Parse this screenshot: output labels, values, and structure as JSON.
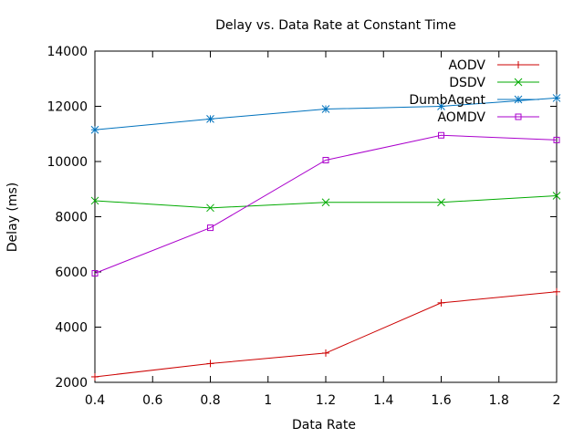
{
  "chart_data": {
    "type": "line",
    "title": "Delay vs. Data Rate at Constant Time",
    "xlabel": "Data Rate",
    "ylabel": "Delay (ms)",
    "xlim": [
      0.4,
      2
    ],
    "ylim": [
      2000,
      14000
    ],
    "xticks": [
      "0.4",
      "0.6",
      "0.8",
      "1",
      "1.2",
      "1.4",
      "1.6",
      "1.8",
      "2"
    ],
    "yticks": [
      "2000",
      "4000",
      "6000",
      "8000",
      "10000",
      "12000",
      "14000"
    ],
    "grid": false,
    "legend_position": "top-right",
    "x": [
      0.4,
      0.8,
      1.2,
      1.6,
      2.0
    ],
    "series": [
      {
        "name": "AODV",
        "color": "#cc0000",
        "marker": "plus",
        "values": [
          2200,
          2680,
          3060,
          4880,
          5280
        ]
      },
      {
        "name": "DSDV",
        "color": "#00aa00",
        "marker": "cross",
        "values": [
          8580,
          8320,
          8520,
          8520,
          8760
        ]
      },
      {
        "name": "DumbAgent",
        "color": "#0072bd",
        "marker": "star",
        "values": [
          11150,
          11540,
          11900,
          12000,
          12300
        ]
      },
      {
        "name": "AOMDV",
        "color": "#aa00cc",
        "marker": "square",
        "values": [
          5950,
          7600,
          10050,
          10950,
          10780
        ]
      }
    ]
  }
}
